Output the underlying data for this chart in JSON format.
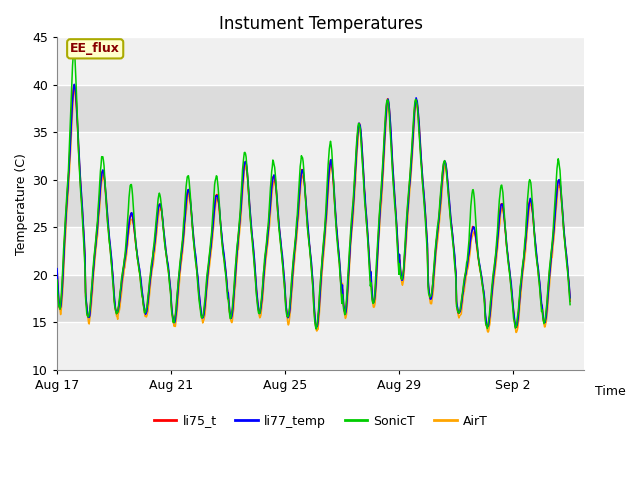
{
  "title": "Instument Temperatures",
  "xlabel": "Time",
  "ylabel": "Temperature (C)",
  "ylim": [
    10,
    45
  ],
  "xtick_labels": [
    "Aug 17",
    "Aug 21",
    "Aug 25",
    "Aug 29",
    "Sep 2"
  ],
  "xtick_positions": [
    0,
    4,
    8,
    12,
    16
  ],
  "colors": {
    "li75_t": "#FF0000",
    "li77_temp": "#0000FF",
    "SonicT": "#00CC00",
    "AirT": "#FFA500"
  },
  "legend_labels": [
    "li75_t",
    "li77_temp",
    "SonicT",
    "AirT"
  ],
  "ee_flux_label": "EE_flux",
  "ee_flux_box_color": "#FFFFCC",
  "ee_flux_text_color": "#880000",
  "ee_flux_border_color": "#AAAA00",
  "plot_bg_color": "#EBEBEB",
  "band_color_dark": "#DCDCDC",
  "band_color_light": "#F0F0F0",
  "grid_color": "#FFFFFF",
  "title_fontsize": 12,
  "axis_label_fontsize": 9,
  "tick_fontsize": 9,
  "legend_fontsize": 9,
  "daily_peaks_li": [
    40.0,
    31.0,
    26.5,
    27.5,
    29.0,
    28.5,
    32.0,
    30.5,
    31.0,
    32.0,
    36.0,
    38.5,
    38.5,
    32.0,
    25.0,
    27.5,
    28.0,
    30.0
  ],
  "daily_troughs_li": [
    16.5,
    15.5,
    16.0,
    16.0,
    15.0,
    15.5,
    15.5,
    16.0,
    15.5,
    14.5,
    16.0,
    17.0,
    19.5,
    17.5,
    16.0,
    14.5,
    14.5,
    15.0
  ],
  "sonic_extra": [
    3.5,
    1.5,
    3.0,
    1.0,
    1.5,
    2.0,
    1.0,
    1.5,
    1.5,
    2.0,
    0.0,
    0.0,
    0.0,
    0.0,
    4.0,
    2.0,
    2.0,
    2.0
  ],
  "air_offset_peak": [
    -0.5,
    -0.5,
    -0.5,
    -0.5,
    -0.5,
    -0.5,
    -0.5,
    -0.5,
    -0.5,
    -0.5,
    -0.5,
    -0.5,
    -0.5,
    -0.5,
    -0.5,
    -0.5,
    -0.5,
    -0.5
  ],
  "air_offset_trough": [
    -0.5,
    -0.5,
    -0.5,
    -0.5,
    -0.5,
    -0.5,
    -0.5,
    -0.5,
    -0.5,
    -0.5,
    -0.5,
    -0.5,
    -0.5,
    -0.5,
    -0.5,
    -0.5,
    -0.5,
    -0.5
  ],
  "n_per_day": 48,
  "n_days": 18,
  "xlim_max": 18.5
}
